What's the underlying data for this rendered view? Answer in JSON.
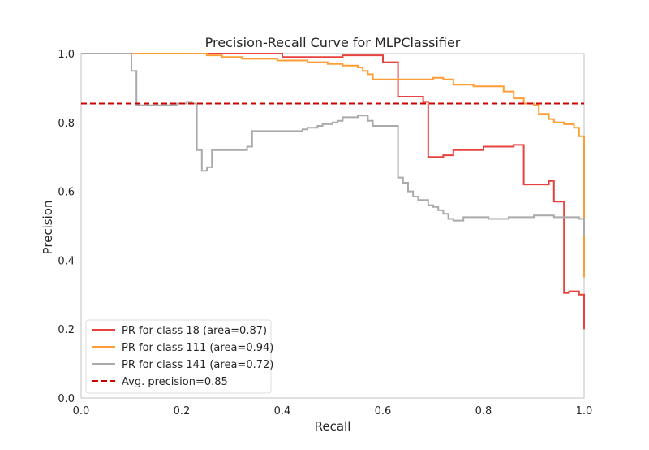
{
  "chart_data": {
    "type": "line",
    "title": "Precision-Recall Curve for MLPClassifier",
    "xlabel": "Recall",
    "ylabel": "Precision",
    "xlim": [
      0.0,
      1.0
    ],
    "ylim": [
      0.0,
      1.0
    ],
    "grid": false,
    "legend_position": "lower-left",
    "xticks": [
      "0.0",
      "0.2",
      "0.4",
      "0.6",
      "0.8",
      "1.0"
    ],
    "yticks": [
      "0.0",
      "0.2",
      "0.4",
      "0.6",
      "0.8",
      "1.0"
    ],
    "series": [
      {
        "name": "PR for class 18 (area=0.87)",
        "color": "#e8423f",
        "step": true,
        "x": [
          0.0,
          0.4,
          0.4,
          0.52,
          0.52,
          0.6,
          0.6,
          0.63,
          0.63,
          0.68,
          0.68,
          0.69,
          0.69,
          0.72,
          0.72,
          0.74,
          0.74,
          0.8,
          0.8,
          0.86,
          0.86,
          0.88,
          0.88,
          0.93,
          0.93,
          0.94,
          0.94,
          0.96,
          0.96,
          0.97,
          0.97,
          0.99,
          0.99,
          1.0,
          1.0
        ],
        "y": [
          1.0,
          1.0,
          0.99,
          0.99,
          0.995,
          0.995,
          0.975,
          0.975,
          0.875,
          0.875,
          0.86,
          0.86,
          0.7,
          0.7,
          0.705,
          0.705,
          0.72,
          0.72,
          0.73,
          0.73,
          0.735,
          0.735,
          0.62,
          0.62,
          0.63,
          0.63,
          0.57,
          0.57,
          0.305,
          0.305,
          0.31,
          0.31,
          0.3,
          0.3,
          0.2
        ]
      },
      {
        "name": "PR for class 111 (area=0.94)",
        "color": "#ff9e37",
        "step": true,
        "x": [
          0.0,
          0.25,
          0.25,
          0.28,
          0.28,
          0.32,
          0.32,
          0.39,
          0.39,
          0.45,
          0.45,
          0.49,
          0.49,
          0.52,
          0.52,
          0.55,
          0.55,
          0.56,
          0.56,
          0.57,
          0.57,
          0.58,
          0.58,
          0.7,
          0.7,
          0.72,
          0.72,
          0.74,
          0.74,
          0.78,
          0.78,
          0.84,
          0.84,
          0.86,
          0.86,
          0.88,
          0.88,
          0.9,
          0.9,
          0.91,
          0.91,
          0.93,
          0.93,
          0.94,
          0.94,
          0.96,
          0.96,
          0.98,
          0.98,
          0.99,
          0.99,
          1.0,
          1.0
        ],
        "y": [
          1.0,
          1.0,
          0.995,
          0.995,
          0.99,
          0.99,
          0.985,
          0.985,
          0.98,
          0.98,
          0.975,
          0.975,
          0.97,
          0.97,
          0.965,
          0.965,
          0.96,
          0.96,
          0.95,
          0.95,
          0.94,
          0.94,
          0.925,
          0.925,
          0.93,
          0.93,
          0.925,
          0.925,
          0.91,
          0.91,
          0.905,
          0.905,
          0.89,
          0.89,
          0.87,
          0.87,
          0.855,
          0.855,
          0.85,
          0.85,
          0.825,
          0.825,
          0.81,
          0.81,
          0.8,
          0.8,
          0.795,
          0.795,
          0.785,
          0.785,
          0.76,
          0.76,
          0.35
        ]
      },
      {
        "name": "PR for class 141 (area=0.72)",
        "color": "#aaaaaa",
        "step": true,
        "x": [
          0.0,
          0.1,
          0.1,
          0.11,
          0.11,
          0.19,
          0.19,
          0.21,
          0.21,
          0.22,
          0.22,
          0.23,
          0.23,
          0.24,
          0.24,
          0.25,
          0.25,
          0.26,
          0.26,
          0.33,
          0.33,
          0.34,
          0.34,
          0.44,
          0.44,
          0.45,
          0.45,
          0.47,
          0.47,
          0.48,
          0.48,
          0.5,
          0.5,
          0.51,
          0.51,
          0.52,
          0.52,
          0.55,
          0.55,
          0.57,
          0.57,
          0.58,
          0.58,
          0.63,
          0.63,
          0.64,
          0.64,
          0.65,
          0.65,
          0.66,
          0.66,
          0.67,
          0.67,
          0.69,
          0.69,
          0.7,
          0.7,
          0.71,
          0.71,
          0.72,
          0.72,
          0.73,
          0.73,
          0.74,
          0.74,
          0.76,
          0.76,
          0.81,
          0.81,
          0.85,
          0.85,
          0.9,
          0.9,
          0.94,
          0.94,
          0.99,
          0.99,
          1.0,
          1.0
        ],
        "y": [
          1.0,
          1.0,
          0.95,
          0.95,
          0.85,
          0.85,
          0.855,
          0.855,
          0.86,
          0.86,
          0.855,
          0.855,
          0.72,
          0.72,
          0.66,
          0.66,
          0.67,
          0.67,
          0.72,
          0.72,
          0.73,
          0.73,
          0.775,
          0.775,
          0.78,
          0.78,
          0.785,
          0.785,
          0.79,
          0.79,
          0.795,
          0.795,
          0.8,
          0.8,
          0.805,
          0.805,
          0.815,
          0.815,
          0.82,
          0.82,
          0.805,
          0.805,
          0.79,
          0.79,
          0.64,
          0.64,
          0.625,
          0.625,
          0.6,
          0.6,
          0.585,
          0.585,
          0.575,
          0.575,
          0.56,
          0.56,
          0.555,
          0.555,
          0.545,
          0.545,
          0.535,
          0.535,
          0.52,
          0.52,
          0.515,
          0.515,
          0.525,
          0.525,
          0.52,
          0.52,
          0.525,
          0.525,
          0.53,
          0.53,
          0.525,
          0.525,
          0.52,
          0.52,
          0.47
        ]
      },
      {
        "name": "Avg. precision=0.85",
        "color": "#cc0000",
        "dashed": true,
        "x": [
          0.0,
          1.0
        ],
        "y": [
          0.855,
          0.855
        ]
      }
    ]
  }
}
